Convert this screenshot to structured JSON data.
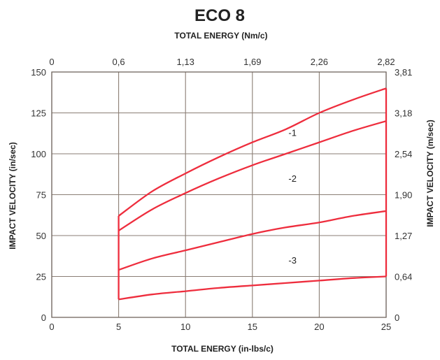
{
  "chart_data": {
    "type": "line",
    "title": "ECO 8",
    "x_top_label": "TOTAL ENERGY (Nm/c)",
    "xlabel": "TOTAL ENERGY (in-lbs/c)",
    "ylabel": "IMPACT VELOCITY (in/sec)",
    "y2label": "IMPACT VELOCITY (m/sec)",
    "xlim": [
      0,
      25
    ],
    "ylim": [
      0,
      150
    ],
    "grid": true,
    "x_ticks": [
      "0",
      "5",
      "10",
      "15",
      "20",
      "25"
    ],
    "x_top_ticks": [
      "0",
      "0,6",
      "1,13",
      "1,69",
      "2,26",
      "2,82"
    ],
    "y_ticks": [
      "0",
      "25",
      "50",
      "75",
      "100",
      "125",
      "150"
    ],
    "y2_ticks": [
      "0",
      "0,64",
      "1,27",
      "1,90",
      "2,54",
      "3,18",
      "3,81"
    ],
    "series": [
      {
        "name": "-1",
        "x": [
          5,
          7.5,
          10,
          12.5,
          15,
          17.5,
          20,
          22.5,
          25
        ],
        "values": [
          62,
          77,
          88,
          98,
          107,
          115,
          125,
          133,
          140
        ]
      },
      {
        "name": "-2",
        "x": [
          5,
          7.5,
          10,
          12.5,
          15,
          17.5,
          20,
          22.5,
          25
        ],
        "values": [
          53,
          66,
          76,
          85,
          93,
          100,
          107,
          114,
          120
        ]
      },
      {
        "name": "-3",
        "x": [
          5,
          7.5,
          10,
          12.5,
          15,
          17.5,
          20,
          22.5,
          25
        ],
        "values": [
          29,
          36,
          41,
          46,
          51,
          55,
          58,
          62,
          65
        ]
      },
      {
        "name": "",
        "x": [
          5,
          7.5,
          10,
          12.5,
          15,
          17.5,
          20,
          22.5,
          25
        ],
        "values": [
          11,
          14,
          16,
          18,
          19.5,
          21,
          22.5,
          24,
          25
        ]
      }
    ],
    "vertical_lines": [
      {
        "x": 5,
        "y_from": 11,
        "y_to": 62
      },
      {
        "x": 25,
        "y_from": 25,
        "y_to": 140
      }
    ],
    "series_labels": [
      {
        "text": "-1",
        "x": 18,
        "y": 113
      },
      {
        "text": "-2",
        "x": 18,
        "y": 85
      },
      {
        "text": "-3",
        "x": 18,
        "y": 35
      }
    ],
    "colors": {
      "curve": "#ee2d3d",
      "grid": "#8a7d74"
    }
  }
}
